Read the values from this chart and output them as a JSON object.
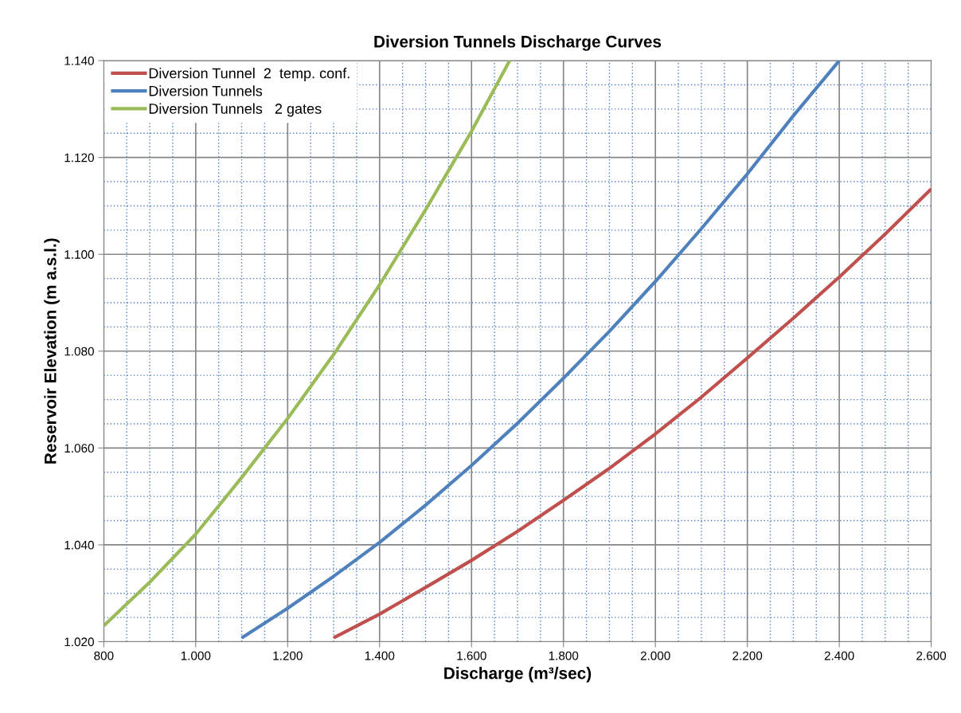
{
  "chart_data": {
    "type": "line",
    "title": "Diversion Tunnels Discharge Curves",
    "xlabel": "Discharge (m³/sec)",
    "ylabel": "Reservoir Elevation (m a.s.l.)",
    "xlim": [
      800,
      2600
    ],
    "xticks": [
      800,
      {
        "value": 850,
        "label": null
      },
      {
        "value": 900,
        "label": null
      },
      {
        "value": 950,
        "label": null
      },
      {
        "value": 1000,
        "label": "1.000"
      },
      {
        "value": 1050,
        "label": null
      },
      {
        "value": 1100,
        "label": null
      },
      {
        "value": 1150,
        "label": null
      },
      {
        "value": 1200,
        "label": "1.200"
      },
      {
        "value": 1250,
        "label": null
      },
      {
        "value": 1300,
        "label": null
      },
      {
        "value": 1350,
        "label": null
      },
      {
        "value": 1400,
        "label": "1.400"
      },
      {
        "value": 1450,
        "label": null
      },
      {
        "value": 1500,
        "label": null
      },
      {
        "value": 1550,
        "label": null
      },
      {
        "value": 1600,
        "label": "1.600"
      },
      {
        "value": 1650,
        "label": null
      },
      {
        "value": 1700,
        "label": null
      },
      {
        "value": 1750,
        "label": null
      },
      {
        "value": 1800,
        "label": "1.800"
      },
      {
        "value": 1850,
        "label": null
      },
      {
        "value": 1900,
        "label": null
      },
      {
        "value": 1950,
        "label": null
      },
      {
        "value": 2000,
        "label": "2.000"
      },
      {
        "value": 2050,
        "label": null
      },
      {
        "value": 2100,
        "label": null
      },
      {
        "value": 2150,
        "label": null
      },
      {
        "value": 2200,
        "label": "2.200"
      },
      {
        "value": 2250,
        "label": null
      },
      {
        "value": 2300,
        "label": null
      },
      {
        "value": 2350,
        "label": null
      },
      {
        "value": 2400,
        "label": "2.400"
      },
      {
        "value": 2450,
        "label": null
      },
      {
        "value": 2500,
        "label": null
      },
      {
        "value": 2550,
        "label": null
      },
      {
        "value": 2600,
        "label": "2.600"
      }
    ],
    "ylim": [
      1020,
      1140
    ],
    "yticks": [
      {
        "value": 1020,
        "label": "1.020"
      },
      {
        "value": 1025,
        "label": null
      },
      {
        "value": 1030,
        "label": null
      },
      {
        "value": 1035,
        "label": null
      },
      {
        "value": 1040,
        "label": "1.040"
      },
      {
        "value": 1045,
        "label": null
      },
      {
        "value": 1050,
        "label": null
      },
      {
        "value": 1055,
        "label": null
      },
      {
        "value": 1060,
        "label": "1.060"
      },
      {
        "value": 1065,
        "label": null
      },
      {
        "value": 1070,
        "label": null
      },
      {
        "value": 1075,
        "label": null
      },
      {
        "value": 1080,
        "label": "1.080"
      },
      {
        "value": 1085,
        "label": null
      },
      {
        "value": 1090,
        "label": null
      },
      {
        "value": 1095,
        "label": null
      },
      {
        "value": 1100,
        "label": "1.100"
      },
      {
        "value": 1105,
        "label": null
      },
      {
        "value": 1110,
        "label": null
      },
      {
        "value": 1115,
        "label": null
      },
      {
        "value": 1120,
        "label": "1.120"
      },
      {
        "value": 1125,
        "label": null
      },
      {
        "value": 1130,
        "label": null
      },
      {
        "value": 1135,
        "label": null
      },
      {
        "value": 1140,
        "label": "1.140"
      }
    ],
    "grid": true,
    "legend": "top left",
    "marker": "none",
    "line_style": "solid",
    "series": [
      {
        "name": "Diversion Tunnel  2  temp. conf.",
        "color": "#c0504d",
        "x": [
          1300,
          1400,
          1500,
          1600,
          1700,
          1800,
          1900,
          2000,
          2100,
          2200,
          2300,
          2400,
          2500,
          2600
        ],
        "values": [
          1020.8,
          1025.7,
          1031.2,
          1036.8,
          1042.8,
          1049.2,
          1055.8,
          1062.9,
          1070.5,
          1078.6,
          1086.8,
          1095.3,
          1104.2,
          1113.5
        ]
      },
      {
        "name": "Diversion Tunnels",
        "color": "#4f81bd",
        "x": [
          1100,
          1200,
          1300,
          1400,
          1500,
          1600,
          1700,
          1800,
          1900,
          2000,
          2100,
          2200,
          2300,
          2400
        ],
        "values": [
          1020.8,
          1026.9,
          1033.5,
          1040.5,
          1048.2,
          1056.4,
          1065.1,
          1074.4,
          1084.1,
          1094.4,
          1105.3,
          1116.6,
          1128.6,
          1140
        ]
      },
      {
        "name": "Diversion Tunnels   2 gates",
        "color": "#9bbb59",
        "x": [
          800,
          900,
          1000,
          1100,
          1200,
          1300,
          1400,
          1500,
          1600,
          1683
        ],
        "values": [
          1023.3,
          1032.3,
          1042.2,
          1053.9,
          1066.1,
          1079.3,
          1093.7,
          1109.2,
          1125.4,
          1140
        ]
      }
    ]
  }
}
